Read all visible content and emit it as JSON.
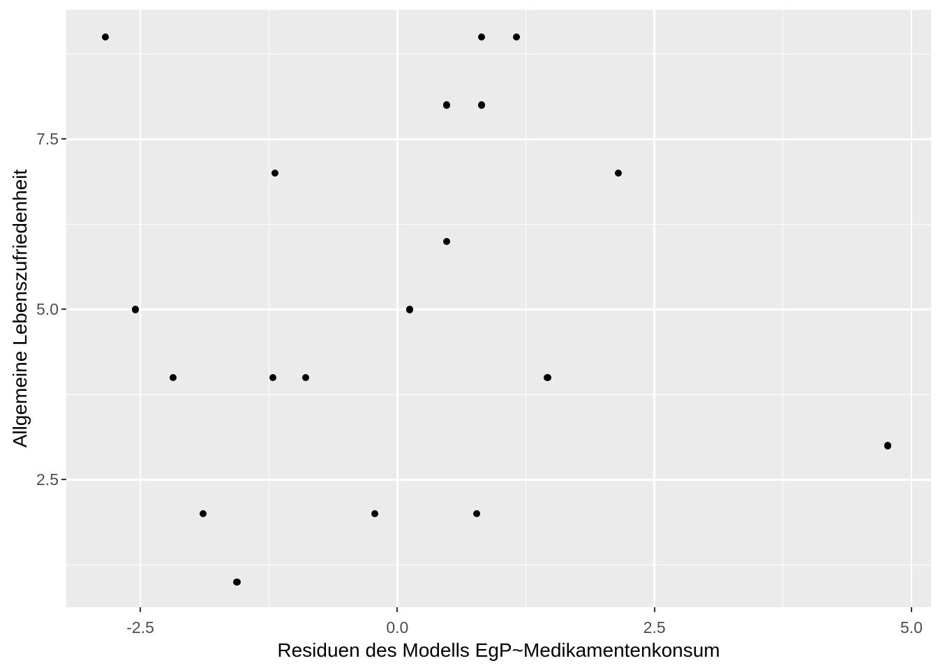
{
  "chart_data": {
    "type": "scatter",
    "title": "",
    "xlabel": "Residuen des Modells EgP~Medikamentenkonsum",
    "ylabel": "Allgemeine Lebenszufriedenheit",
    "xlim": [
      -3.22,
      5.19
    ],
    "ylim": [
      0.63,
      9.4
    ],
    "x_ticks": [
      -2.5,
      0.0,
      2.5,
      5.0
    ],
    "x_tick_labels": [
      "-2.5",
      "0.0",
      "2.5",
      "5.0"
    ],
    "y_ticks": [
      2.5,
      5.0,
      7.5
    ],
    "y_tick_labels": [
      "2.5",
      "5.0",
      "7.5"
    ],
    "x_minor_ticks": [
      -1.25,
      1.25,
      3.75
    ],
    "y_minor_ticks": [
      1.25,
      3.75,
      6.25,
      8.75
    ],
    "grid": true,
    "legend": false,
    "points": [
      {
        "x": -2.84,
        "y": 9
      },
      {
        "x": 0.82,
        "y": 9
      },
      {
        "x": 1.16,
        "y": 9
      },
      {
        "x": 0.48,
        "y": 8
      },
      {
        "x": 0.82,
        "y": 8
      },
      {
        "x": -1.19,
        "y": 7
      },
      {
        "x": 2.15,
        "y": 7
      },
      {
        "x": 0.48,
        "y": 6
      },
      {
        "x": -2.55,
        "y": 5
      },
      {
        "x": 0.12,
        "y": 5
      },
      {
        "x": -2.18,
        "y": 4
      },
      {
        "x": -1.21,
        "y": 4
      },
      {
        "x": -0.89,
        "y": 4
      },
      {
        "x": 1.46,
        "y": 4
      },
      {
        "x": 4.77,
        "y": 3
      },
      {
        "x": -1.89,
        "y": 2
      },
      {
        "x": -0.22,
        "y": 2
      },
      {
        "x": 0.77,
        "y": 2
      },
      {
        "x": -1.56,
        "y": 1
      }
    ],
    "style": {
      "page_bg": "#FFFFFF",
      "panel_bg": "#EBEBEB",
      "grid_major": "#FFFFFF",
      "point_color": "#000000",
      "tick_label_color": "#4D4D4D",
      "axis_title_color": "#000000",
      "tick_mark_color": "#333333"
    }
  }
}
